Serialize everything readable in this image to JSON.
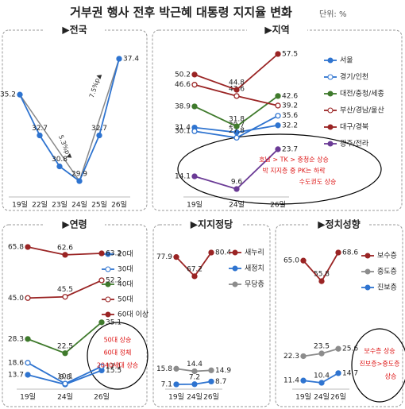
{
  "title": "거부권 행사 전후 박근혜 대통령 지지율 변화",
  "unit": "단위: %",
  "chart_data": [
    {
      "type": "line",
      "title": "▶전국",
      "categories": [
        "19일",
        "22일",
        "23일",
        "24일",
        "25일",
        "26일"
      ],
      "series": [
        {
          "color": "#2f74d0",
          "marker": "filled",
          "values": [
            35.2,
            32.7,
            30.8,
            29.9,
            32.7,
            37.4
          ],
          "value_labels": [
            "35.2",
            "32.7",
            "30.8",
            "29.9",
            "32.7",
            "37.4"
          ]
        }
      ],
      "annotations": [
        "5.3%p▼",
        "7.5%p▲"
      ]
    },
    {
      "type": "line",
      "title": "▶지역",
      "categories": [
        "19일",
        "24일",
        "26일"
      ],
      "series": [
        {
          "name": "서울",
          "color": "#2f74d0",
          "marker": "filled",
          "values": [
            31.4,
            29.7,
            32.2
          ],
          "value_labels": [
            "31.4",
            "29.7",
            "32.2"
          ]
        },
        {
          "name": "경기/인천",
          "color": "#2f74d0",
          "marker": "open",
          "values": [
            30.1,
            27.8,
            35.6
          ],
          "value_labels": [
            "30.1",
            "27.8",
            "35.6"
          ]
        },
        {
          "name": "대전/충청/세종",
          "color": "#3f7a2c",
          "marker": "filled",
          "values": [
            38.9,
            31.8,
            42.6
          ],
          "value_labels": [
            "38.9",
            "31.8",
            "42.6"
          ]
        },
        {
          "name": "부산/경남/울산",
          "color": "#9a2424",
          "marker": "open",
          "values": [
            46.6,
            42.6,
            39.2
          ],
          "value_labels": [
            "46.6",
            "42.6",
            "39.2"
          ]
        },
        {
          "name": "대구/경북",
          "color": "#9a2424",
          "marker": "filled",
          "values": [
            50.2,
            44.8,
            57.5
          ],
          "value_labels": [
            "50.2",
            "44.8",
            "57.5"
          ]
        },
        {
          "name": "광주/전라",
          "color": "#6b3b96",
          "marker": "filled",
          "values": [
            14.1,
            9.6,
            23.7
          ],
          "value_labels": [
            "14.1",
            "9.6",
            "23.7"
          ]
        }
      ],
      "annotations": [
        "호남 > TK > 충청순 상승",
        "박 지지층 중 PK는 하락",
        "수도권도 상승"
      ]
    },
    {
      "type": "line",
      "title": "▶연령",
      "categories": [
        "19일",
        "24일",
        "26일"
      ],
      "series": [
        {
          "name": "20대",
          "color": "#2f74d0",
          "marker": "filled",
          "values": [
            13.7,
            9.8,
            15.5
          ],
          "value_labels": [
            "13.7",
            "9.8",
            "15.5"
          ]
        },
        {
          "name": "30대",
          "color": "#2f74d0",
          "marker": "open",
          "values": [
            18.6,
            10.1,
            17.1
          ],
          "value_labels": [
            "18.6",
            "10.1",
            "17.1"
          ]
        },
        {
          "name": "40대",
          "color": "#3f7a2c",
          "marker": "filled",
          "values": [
            28.3,
            22.5,
            35.1
          ],
          "value_labels": [
            "28.3",
            "22.5",
            "35.1"
          ]
        },
        {
          "name": "50대",
          "color": "#9a2424",
          "marker": "open",
          "values": [
            45.0,
            45.5,
            52.2
          ],
          "value_labels": [
            "45.0",
            "45.5",
            "52.2"
          ]
        },
        {
          "name": "60대 이상",
          "color": "#9a2424",
          "marker": "filled",
          "values": [
            65.8,
            62.6,
            63.2
          ],
          "value_labels": [
            "65.8",
            "62.6",
            "63.2"
          ]
        }
      ],
      "annotations": [
        "50대 상승",
        "60대 정체",
        "2040세대 상승"
      ]
    },
    {
      "type": "line",
      "title": "▶지지정당",
      "categories": [
        "19일",
        "24일",
        "26일"
      ],
      "series": [
        {
          "name": "새누리",
          "color": "#9a2424",
          "marker": "filled",
          "values": [
            77.9,
            67.2,
            80.4
          ],
          "value_labels": [
            "77.9",
            "67.2",
            "80.4"
          ]
        },
        {
          "name": "새정치",
          "color": "#2f74d0",
          "marker": "filled",
          "values": [
            7.1,
            7.2,
            8.7
          ],
          "value_labels": [
            "7.1",
            "7.2",
            "8.7"
          ]
        },
        {
          "name": "무당층",
          "color": "#8c8c8c",
          "marker": "filled",
          "values": [
            15.8,
            14.4,
            14.9
          ],
          "value_labels": [
            "15.8",
            "14.4",
            "14.9"
          ]
        }
      ],
      "annotations": []
    },
    {
      "type": "line",
      "title": "▶정치성향",
      "categories": [
        "19일",
        "24일",
        "26일"
      ],
      "series": [
        {
          "name": "보수층",
          "color": "#9a2424",
          "marker": "filled",
          "values": [
            65.0,
            55.8,
            68.6
          ],
          "value_labels": [
            "65.0",
            "55.8",
            "68.6"
          ]
        },
        {
          "name": "중도층",
          "color": "#8c8c8c",
          "marker": "filled",
          "values": [
            22.3,
            23.5,
            25.6
          ],
          "value_labels": [
            "22.3",
            "23.5",
            "25.6"
          ]
        },
        {
          "name": "진보층",
          "color": "#2f74d0",
          "marker": "filled",
          "values": [
            11.4,
            10.4,
            14.7
          ],
          "value_labels": [
            "11.4",
            "10.4",
            "14.7"
          ]
        }
      ],
      "annotations": [
        "보수층 상승",
        "진보층>중도층",
        "상승"
      ]
    }
  ]
}
